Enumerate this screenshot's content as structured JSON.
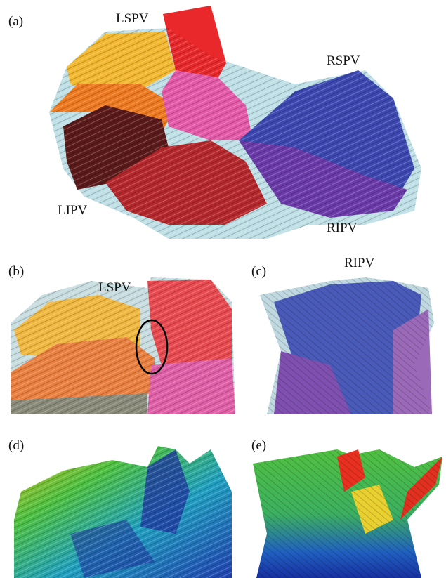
{
  "panels": [
    {
      "label": "(a)",
      "annotations": [
        "LSPV",
        "RSPV",
        "LIPV",
        "RIPV"
      ]
    },
    {
      "label": "(b)",
      "annotations": [
        "LSPV"
      ]
    },
    {
      "label": "(c)",
      "annotations": [
        "RIPV"
      ]
    },
    {
      "label": "(d)"
    },
    {
      "label": "(e)"
    }
  ]
}
